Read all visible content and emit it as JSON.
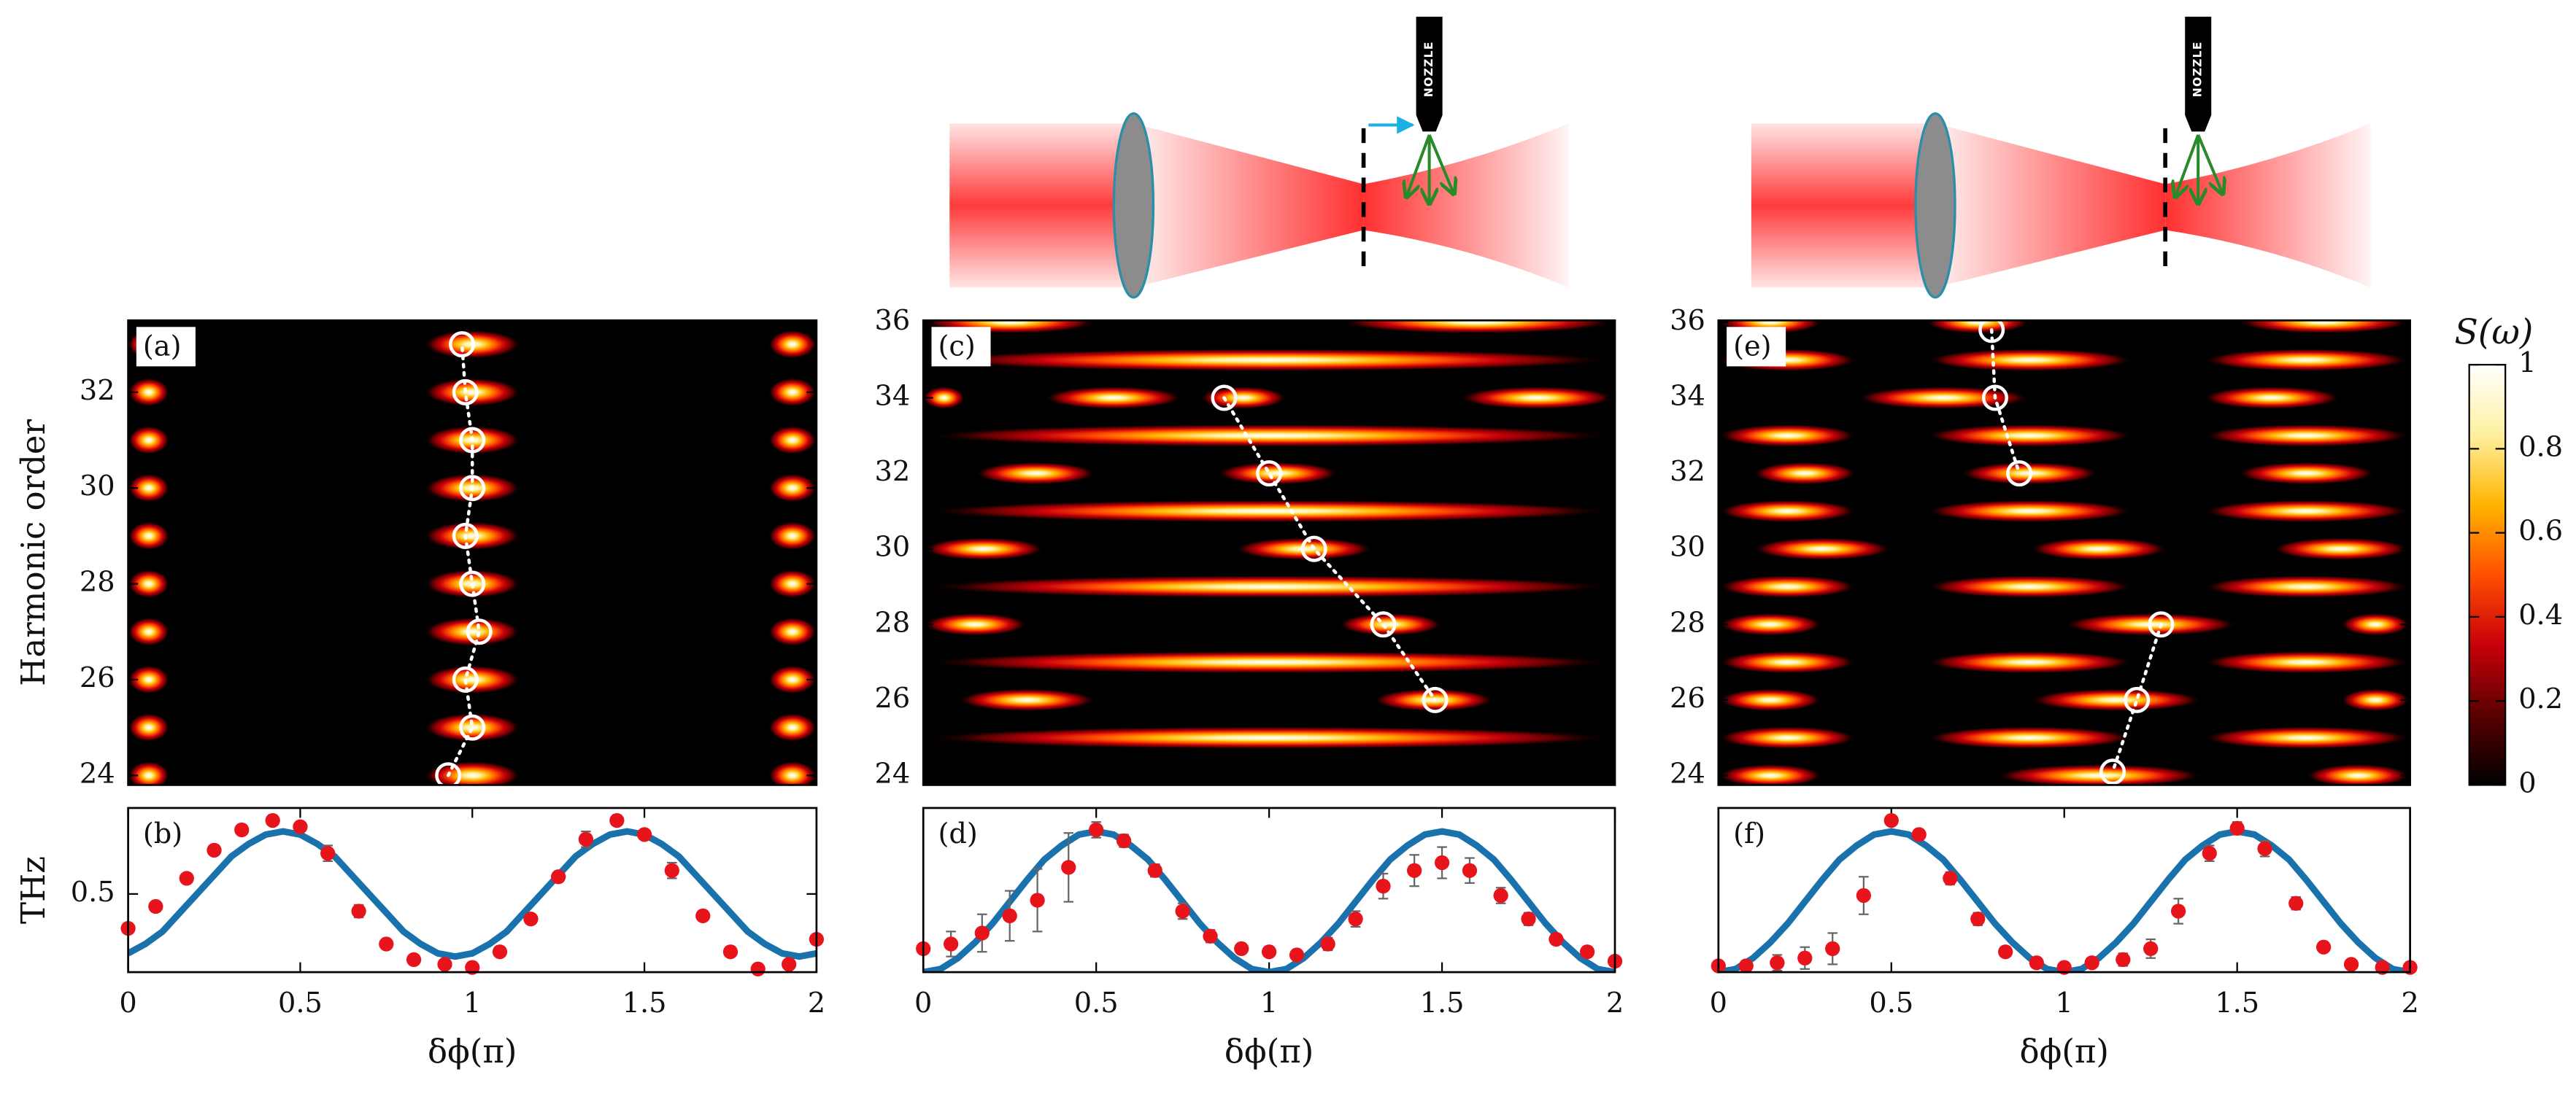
{
  "illustration": {
    "nozzle_labels": [
      "NOZZLE",
      "NOZZLE"
    ]
  },
  "chart_data": [
    {
      "type": "heatmap",
      "label": "(a)",
      "ylabel": "Harmonic order",
      "xlim": [
        0,
        2
      ],
      "ylim": [
        23.8,
        33.5
      ],
      "yticks": [
        24,
        26,
        28,
        30,
        32
      ],
      "streaks": {
        "y": [
          24,
          24,
          24,
          25,
          25,
          25,
          26,
          26,
          26,
          27,
          27,
          27,
          28,
          28,
          28,
          29,
          29,
          29,
          30,
          30,
          30,
          31,
          31,
          31,
          32,
          32,
          32,
          33,
          33,
          33
        ],
        "x0": [
          0,
          0.86,
          1.86,
          0,
          0.86,
          1.86,
          0,
          0.86,
          1.86,
          0,
          0.86,
          1.86,
          0,
          0.86,
          1.86,
          0,
          0.86,
          1.86,
          0,
          0.86,
          1.86,
          0,
          0.86,
          1.86,
          0,
          0.86,
          1.86,
          0,
          0.86,
          1.86
        ],
        "x1": [
          0.12,
          1.14,
          2,
          0.12,
          1.14,
          2,
          0.12,
          1.14,
          2,
          0.12,
          1.14,
          2,
          0.12,
          1.14,
          2,
          0.12,
          1.14,
          2,
          0.12,
          1.14,
          2,
          0.12,
          1.14,
          2,
          0.12,
          1.14,
          2,
          0.12,
          1.14,
          2
        ]
      },
      "series": [
        {
          "color": "#ffffff",
          "x": [
            0.93,
            1.0,
            0.98,
            1.02,
            1.0,
            0.98,
            1.0,
            1.0,
            0.98,
            0.97
          ],
          "values": [
            24,
            25,
            26,
            27,
            28,
            29,
            30,
            31,
            32,
            33
          ]
        }
      ]
    },
    {
      "type": "line",
      "label": "(b)",
      "ylabel": "THz",
      "xlabel": "δϕ(π)",
      "xlim": [
        0,
        2
      ],
      "ylim": [
        0,
        1.05
      ],
      "xticks": [
        0,
        0.5,
        1,
        1.5,
        2
      ],
      "yticks": [
        0.5
      ],
      "series": [
        {
          "style": "line",
          "color": "#1a72ad",
          "x": [
            0,
            0.05,
            0.1,
            0.15,
            0.2,
            0.25,
            0.3,
            0.35,
            0.4,
            0.45,
            0.5,
            0.55,
            0.6,
            0.65,
            0.7,
            0.75,
            0.8,
            0.85,
            0.9,
            0.95,
            1,
            1.05,
            1.1,
            1.15,
            1.2,
            1.25,
            1.3,
            1.35,
            1.4,
            1.45,
            1.5,
            1.55,
            1.6,
            1.65,
            1.7,
            1.75,
            1.8,
            1.85,
            1.9,
            1.95,
            2
          ],
          "values": [
            0.12,
            0.18,
            0.26,
            0.38,
            0.5,
            0.62,
            0.74,
            0.82,
            0.88,
            0.9,
            0.88,
            0.82,
            0.74,
            0.62,
            0.5,
            0.38,
            0.26,
            0.18,
            0.12,
            0.1,
            0.12,
            0.18,
            0.26,
            0.38,
            0.5,
            0.62,
            0.74,
            0.82,
            0.88,
            0.9,
            0.88,
            0.82,
            0.74,
            0.62,
            0.5,
            0.38,
            0.26,
            0.18,
            0.12,
            0.1,
            0.12
          ]
        },
        {
          "style": "scatter",
          "color": "#e8141c",
          "x": [
            0,
            0.08,
            0.17,
            0.25,
            0.33,
            0.42,
            0.5,
            0.58,
            0.67,
            0.75,
            0.83,
            0.92,
            1,
            1.08,
            1.17,
            1.25,
            1.33,
            1.42,
            1.5,
            1.58,
            1.67,
            1.75,
            1.83,
            1.92,
            2
          ],
          "values": [
            0.28,
            0.42,
            0.6,
            0.78,
            0.91,
            0.97,
            0.93,
            0.76,
            0.39,
            0.18,
            0.08,
            0.05,
            0.03,
            0.13,
            0.34,
            0.61,
            0.85,
            0.97,
            0.88,
            0.65,
            0.36,
            0.13,
            0.02,
            0.05,
            0.21
          ],
          "errors": [
            0.02,
            0.02,
            0.02,
            0.02,
            0.03,
            0.02,
            0.03,
            0.05,
            0.04,
            0.03,
            0.02,
            0.02,
            0.02,
            0.02,
            0.03,
            0.03,
            0.05,
            0.03,
            0.03,
            0.05,
            0.03,
            0.02,
            0.02,
            0.02,
            0.02
          ]
        }
      ]
    },
    {
      "type": "heatmap",
      "label": "(c)",
      "xlim": [
        0,
        2
      ],
      "ylim": [
        23.75,
        36.05
      ],
      "yticks": [
        24,
        26,
        28,
        30,
        32,
        34,
        36
      ],
      "streaks": {
        "y": [
          25,
          27,
          29,
          31,
          33,
          35,
          26,
          26,
          28,
          28,
          30,
          30,
          32,
          32,
          34,
          34,
          34,
          34,
          36,
          36
        ],
        "x0": [
          0,
          0,
          0,
          0,
          0,
          0,
          0.1,
          1.3,
          0,
          1.2,
          0,
          0.9,
          0.15,
          0.85,
          0,
          0.35,
          0.8,
          1.55,
          0,
          1.2
        ],
        "x1": [
          2,
          2,
          2,
          2,
          2,
          2,
          0.5,
          1.65,
          0.3,
          1.5,
          0.35,
          1.3,
          0.5,
          1.2,
          0.12,
          0.75,
          1.05,
          2,
          0.5,
          2
        ]
      },
      "series": [
        {
          "color": "#ffffff",
          "x": [
            0.87,
            1.0,
            1.13,
            1.33,
            1.48
          ],
          "values": [
            34,
            32,
            30,
            28,
            26
          ]
        }
      ]
    },
    {
      "type": "line",
      "label": "(d)",
      "xlabel": "δϕ(π)",
      "xlim": [
        0,
        2
      ],
      "ylim": [
        0,
        1.05
      ],
      "xticks": [
        0,
        0.5,
        1,
        1.5,
        2
      ],
      "series": [
        {
          "style": "line",
          "color": "#1a72ad",
          "x": [
            0,
            0.05,
            0.1,
            0.15,
            0.2,
            0.25,
            0.3,
            0.35,
            0.4,
            0.45,
            0.5,
            0.55,
            0.6,
            0.65,
            0.7,
            0.75,
            0.8,
            0.85,
            0.9,
            0.95,
            1,
            1.05,
            1.1,
            1.15,
            1.2,
            1.25,
            1.3,
            1.35,
            1.4,
            1.45,
            1.5,
            1.55,
            1.6,
            1.65,
            1.7,
            1.75,
            1.8,
            1.85,
            1.9,
            1.95,
            2
          ],
          "values": [
            0,
            0.02,
            0.09,
            0.19,
            0.31,
            0.45,
            0.59,
            0.72,
            0.81,
            0.88,
            0.9,
            0.88,
            0.81,
            0.72,
            0.59,
            0.45,
            0.31,
            0.19,
            0.09,
            0.02,
            0,
            0.02,
            0.09,
            0.19,
            0.31,
            0.45,
            0.59,
            0.72,
            0.81,
            0.88,
            0.9,
            0.88,
            0.81,
            0.72,
            0.59,
            0.45,
            0.31,
            0.19,
            0.09,
            0.02,
            0
          ]
        },
        {
          "style": "scatter",
          "color": "#e8141c",
          "x": [
            0,
            0.08,
            0.17,
            0.25,
            0.33,
            0.42,
            0.5,
            0.58,
            0.67,
            0.75,
            0.83,
            0.92,
            1,
            1.08,
            1.17,
            1.25,
            1.33,
            1.42,
            1.5,
            1.58,
            1.67,
            1.75,
            1.83,
            1.92,
            2
          ],
          "values": [
            0.15,
            0.18,
            0.25,
            0.36,
            0.46,
            0.67,
            0.91,
            0.84,
            0.65,
            0.39,
            0.23,
            0.15,
            0.13,
            0.11,
            0.18,
            0.34,
            0.55,
            0.65,
            0.7,
            0.65,
            0.49,
            0.34,
            0.21,
            0.13,
            0.07
          ],
          "errors": [
            0.03,
            0.08,
            0.12,
            0.16,
            0.2,
            0.22,
            0.05,
            0.04,
            0.04,
            0.05,
            0.04,
            0.03,
            0.03,
            0.03,
            0.04,
            0.05,
            0.08,
            0.1,
            0.1,
            0.08,
            0.05,
            0.04,
            0.03,
            0.03,
            0.02
          ]
        }
      ]
    },
    {
      "type": "heatmap",
      "label": "(e)",
      "xlim": [
        0,
        2
      ],
      "ylim": [
        23.75,
        36.05
      ],
      "yticks": [
        24,
        26,
        28,
        30,
        32,
        34,
        36
      ],
      "streaks": {
        "y": [
          25,
          25,
          25,
          27,
          27,
          27,
          29,
          29,
          29,
          31,
          31,
          31,
          33,
          33,
          33,
          35,
          35,
          35,
          24,
          24,
          24,
          26,
          26,
          26,
          28,
          28,
          28,
          30,
          30,
          30,
          32,
          32,
          32,
          34,
          34,
          36,
          36,
          36
        ],
        "x0": [
          0,
          0.6,
          1.4,
          0,
          0.6,
          1.4,
          0,
          0.6,
          1.4,
          0,
          0.6,
          1.4,
          0,
          0.6,
          1.4,
          0,
          0.6,
          1.4,
          0,
          0.8,
          1.7,
          0,
          0.9,
          1.8,
          0,
          1,
          1.8,
          0.1,
          0.9,
          1.6,
          0.1,
          0.7,
          1.5,
          0.4,
          1.4,
          0,
          0.6,
          1.5
        ],
        "x1": [
          0.4,
          1.2,
          2,
          0.4,
          1.2,
          2,
          0.4,
          1.2,
          2,
          0.4,
          1.2,
          2,
          0.4,
          1.2,
          2,
          0.4,
          1.2,
          2,
          0.3,
          1.4,
          2,
          0.3,
          1.4,
          2,
          0.3,
          1.5,
          2,
          0.5,
          1.3,
          2,
          0.4,
          1.1,
          1.9,
          0.9,
          1.8,
          0.3,
          0.9,
          2
        ]
      },
      "series": [
        {
          "color": "#ffffff",
          "x": [
            0.79,
            0.8,
            0.87
          ],
          "values": [
            35.8,
            34,
            32
          ]
        },
        {
          "color": "#ffffff",
          "x": [
            1.28,
            1.21,
            1.14
          ],
          "values": [
            28,
            26,
            24.1
          ]
        }
      ]
    },
    {
      "type": "line",
      "label": "(f)",
      "xlabel": "δϕ(π)",
      "xlim": [
        0,
        2
      ],
      "ylim": [
        0,
        1.05
      ],
      "xticks": [
        0,
        0.5,
        1,
        1.5,
        2
      ],
      "series": [
        {
          "style": "line",
          "color": "#1a72ad",
          "x": [
            0,
            0.05,
            0.1,
            0.15,
            0.2,
            0.25,
            0.3,
            0.35,
            0.4,
            0.45,
            0.5,
            0.55,
            0.6,
            0.65,
            0.7,
            0.75,
            0.8,
            0.85,
            0.9,
            0.95,
            1,
            1.05,
            1.1,
            1.15,
            1.2,
            1.25,
            1.3,
            1.35,
            1.4,
            1.45,
            1.5,
            1.55,
            1.6,
            1.65,
            1.7,
            1.75,
            1.8,
            1.85,
            1.9,
            1.95,
            2
          ],
          "values": [
            0,
            0.02,
            0.09,
            0.19,
            0.31,
            0.45,
            0.59,
            0.72,
            0.81,
            0.88,
            0.9,
            0.88,
            0.81,
            0.72,
            0.59,
            0.45,
            0.31,
            0.19,
            0.09,
            0.02,
            0,
            0.02,
            0.09,
            0.19,
            0.31,
            0.45,
            0.59,
            0.72,
            0.81,
            0.88,
            0.9,
            0.88,
            0.81,
            0.72,
            0.59,
            0.45,
            0.31,
            0.19,
            0.09,
            0.02,
            0
          ]
        },
        {
          "style": "scatter",
          "color": "#e8141c",
          "x": [
            0,
            0.08,
            0.17,
            0.25,
            0.33,
            0.42,
            0.5,
            0.58,
            0.67,
            0.75,
            0.83,
            0.92,
            1,
            1.08,
            1.17,
            1.25,
            1.33,
            1.42,
            1.5,
            1.58,
            1.67,
            1.75,
            1.83,
            1.92,
            2
          ],
          "values": [
            0.04,
            0.04,
            0.06,
            0.09,
            0.15,
            0.49,
            0.97,
            0.88,
            0.6,
            0.34,
            0.13,
            0.06,
            0.03,
            0.06,
            0.08,
            0.15,
            0.39,
            0.76,
            0.92,
            0.79,
            0.44,
            0.16,
            0.05,
            0.03,
            0.03
          ],
          "errors": [
            0.02,
            0.03,
            0.05,
            0.07,
            0.1,
            0.12,
            0.03,
            0.03,
            0.04,
            0.04,
            0.03,
            0.02,
            0.02,
            0.03,
            0.04,
            0.06,
            0.08,
            0.05,
            0.04,
            0.05,
            0.04,
            0.03,
            0.02,
            0.02,
            0.02
          ]
        }
      ]
    },
    {
      "type": "colorbar",
      "title": "S(ω)",
      "colormap": [
        "#000000",
        "#5a0000",
        "#c8000a",
        "#ff5000",
        "#ffb400",
        "#fff0a0",
        "#ffffff"
      ],
      "ylim": [
        0,
        1
      ],
      "yticks": [
        0,
        0.2,
        0.4,
        0.6,
        0.8,
        1
      ]
    }
  ]
}
